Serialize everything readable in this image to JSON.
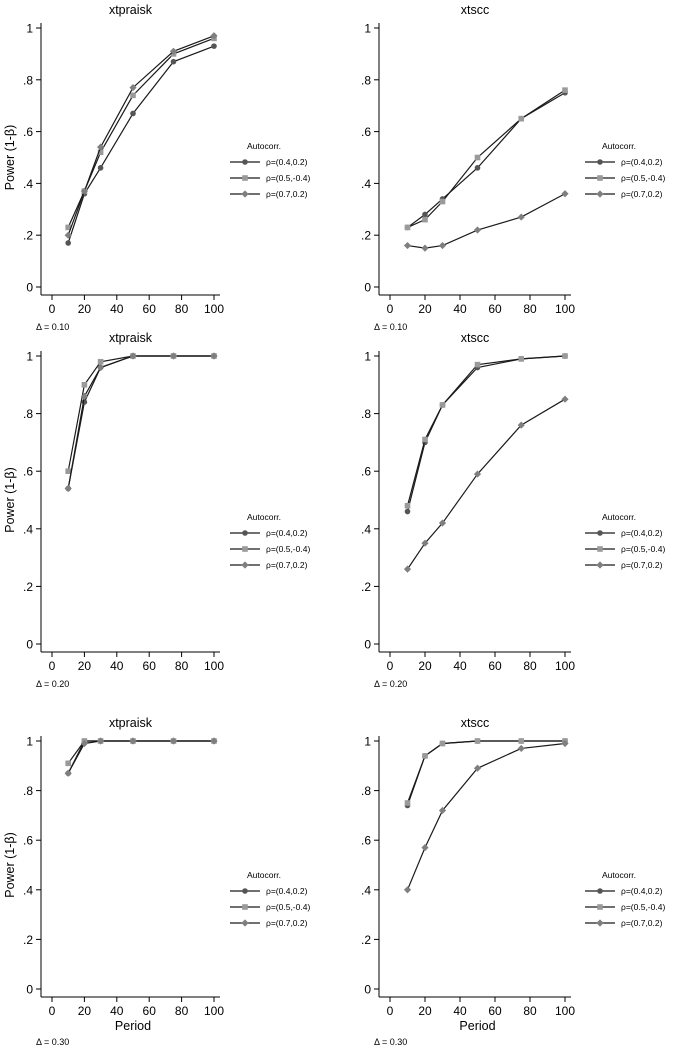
{
  "figure": {
    "ylabel": "Power (1-β)",
    "xlabel": "Period",
    "legend_title": "Autocorr.",
    "series_names": [
      "ρ=(0.4,0.2)",
      "ρ=(0.5,-0.4)",
      "ρ=(0.7,0.2)"
    ],
    "series_colors": [
      "#555555",
      "#9a9a9a",
      "#7f7f7f"
    ],
    "series_markers": [
      "circle",
      "square",
      "diamond"
    ]
  },
  "chart_data": [
    {
      "type": "line",
      "title": "xtpraisk",
      "note": "Δ = 0.10",
      "xlabel": "",
      "ylabel": "Power (1-β)",
      "x": [
        10,
        20,
        30,
        50,
        75,
        100
      ],
      "xlim": [
        0,
        100
      ],
      "ylim": [
        0,
        1
      ],
      "xticks": [
        "0",
        "20",
        "40",
        "60",
        "80",
        "100"
      ],
      "yticks": [
        "0",
        ".2",
        ".4",
        ".6",
        ".8",
        "1"
      ],
      "legend_position": "right",
      "series": [
        {
          "name": "ρ=(0.4,0.2)",
          "values": [
            0.17,
            0.36,
            0.46,
            0.67,
            0.87,
            0.93
          ]
        },
        {
          "name": "ρ=(0.5,-0.4)",
          "values": [
            0.23,
            0.37,
            0.52,
            0.74,
            0.9,
            0.96
          ]
        },
        {
          "name": "ρ=(0.7,0.2)",
          "values": [
            0.2,
            0.37,
            0.54,
            0.77,
            0.91,
            0.97
          ]
        }
      ]
    },
    {
      "type": "line",
      "title": "xtscc",
      "note": "Δ = 0.10",
      "xlabel": "",
      "ylabel": "",
      "x": [
        10,
        20,
        30,
        50,
        75,
        100
      ],
      "xlim": [
        0,
        100
      ],
      "ylim": [
        0,
        1
      ],
      "xticks": [
        "0",
        "20",
        "40",
        "60",
        "80",
        "100"
      ],
      "yticks": [
        "0",
        ".2",
        ".4",
        ".6",
        ".8",
        "1"
      ],
      "legend_position": "right",
      "series": [
        {
          "name": "ρ=(0.4,0.2)",
          "values": [
            0.23,
            0.28,
            0.34,
            0.46,
            0.65,
            0.75
          ]
        },
        {
          "name": "ρ=(0.5,-0.4)",
          "values": [
            0.23,
            0.26,
            0.33,
            0.5,
            0.65,
            0.76
          ]
        },
        {
          "name": "ρ=(0.7,0.2)",
          "values": [
            0.16,
            0.15,
            0.16,
            0.22,
            0.27,
            0.36
          ]
        }
      ]
    },
    {
      "type": "line",
      "title": "xtpraisk",
      "note": "Δ = 0.20",
      "xlabel": "",
      "ylabel": "Power (1-β)",
      "x": [
        10,
        20,
        30,
        50,
        75,
        100
      ],
      "xlim": [
        0,
        100
      ],
      "ylim": [
        0,
        1
      ],
      "xticks": [
        "0",
        "20",
        "40",
        "60",
        "80",
        "100"
      ],
      "yticks": [
        "0",
        ".2",
        ".4",
        ".6",
        ".8",
        "1"
      ],
      "legend_position": "right",
      "series": [
        {
          "name": "ρ=(0.4,0.2)",
          "values": [
            0.54,
            0.84,
            0.96,
            1.0,
            1.0,
            1.0
          ]
        },
        {
          "name": "ρ=(0.5,-0.4)",
          "values": [
            0.6,
            0.9,
            0.98,
            1.0,
            1.0,
            1.0
          ]
        },
        {
          "name": "ρ=(0.7,0.2)",
          "values": [
            0.54,
            0.86,
            0.96,
            1.0,
            1.0,
            1.0
          ]
        }
      ]
    },
    {
      "type": "line",
      "title": "xtscc",
      "note": "Δ = 0.20",
      "xlabel": "",
      "ylabel": "",
      "x": [
        10,
        20,
        30,
        50,
        75,
        100
      ],
      "xlim": [
        0,
        100
      ],
      "ylim": [
        0,
        1
      ],
      "xticks": [
        "0",
        "20",
        "40",
        "60",
        "80",
        "100"
      ],
      "yticks": [
        "0",
        ".2",
        ".4",
        ".6",
        ".8",
        "1"
      ],
      "legend_position": "right",
      "series": [
        {
          "name": "ρ=(0.4,0.2)",
          "values": [
            0.46,
            0.7,
            0.83,
            0.96,
            0.99,
            1.0
          ]
        },
        {
          "name": "ρ=(0.5,-0.4)",
          "values": [
            0.48,
            0.71,
            0.83,
            0.97,
            0.99,
            1.0
          ]
        },
        {
          "name": "ρ=(0.7,0.2)",
          "values": [
            0.26,
            0.35,
            0.42,
            0.59,
            0.76,
            0.85
          ]
        }
      ]
    },
    {
      "type": "line",
      "title": "xtpraisk",
      "note": "Δ = 0.30",
      "xlabel": "Period",
      "ylabel": "Power (1-β)",
      "x": [
        10,
        20,
        30,
        50,
        75,
        100
      ],
      "xlim": [
        0,
        100
      ],
      "ylim": [
        0,
        1
      ],
      "xticks": [
        "0",
        "20",
        "40",
        "60",
        "80",
        "100"
      ],
      "yticks": [
        "0",
        ".2",
        ".4",
        ".6",
        ".8",
        "1"
      ],
      "legend_position": "right",
      "series": [
        {
          "name": "ρ=(0.4,0.2)",
          "values": [
            0.87,
            1.0,
            1.0,
            1.0,
            1.0,
            1.0
          ]
        },
        {
          "name": "ρ=(0.5,-0.4)",
          "values": [
            0.91,
            1.0,
            1.0,
            1.0,
            1.0,
            1.0
          ]
        },
        {
          "name": "ρ=(0.7,0.2)",
          "values": [
            0.87,
            0.99,
            1.0,
            1.0,
            1.0,
            1.0
          ]
        }
      ]
    },
    {
      "type": "line",
      "title": "xtscc",
      "note": "Δ = 0.30",
      "xlabel": "Period",
      "ylabel": "",
      "x": [
        10,
        20,
        30,
        50,
        75,
        100
      ],
      "xlim": [
        0,
        100
      ],
      "ylim": [
        0,
        1
      ],
      "xticks": [
        "0",
        "20",
        "40",
        "60",
        "80",
        "100"
      ],
      "yticks": [
        "0",
        ".2",
        ".4",
        ".6",
        ".8",
        "1"
      ],
      "legend_position": "right",
      "series": [
        {
          "name": "ρ=(0.4,0.2)",
          "values": [
            0.74,
            0.94,
            0.99,
            1.0,
            1.0,
            1.0
          ]
        },
        {
          "name": "ρ=(0.5,-0.4)",
          "values": [
            0.75,
            0.94,
            0.99,
            1.0,
            1.0,
            1.0
          ]
        },
        {
          "name": "ρ=(0.7,0.2)",
          "values": [
            0.4,
            0.57,
            0.72,
            0.89,
            0.97,
            0.99
          ]
        }
      ]
    }
  ]
}
